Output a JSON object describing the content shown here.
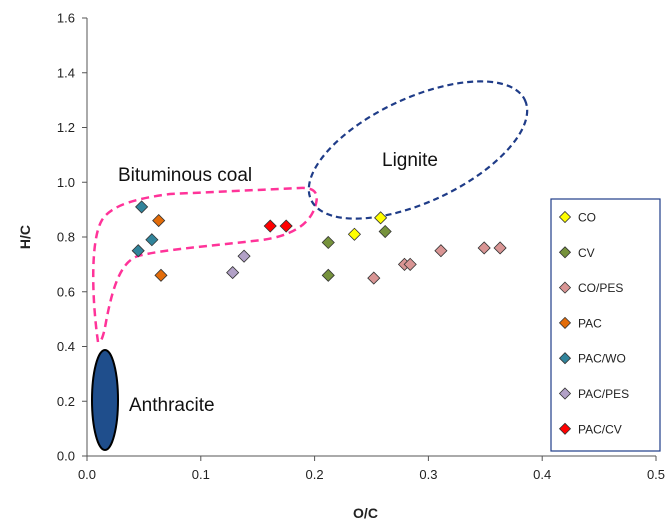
{
  "chart_data": {
    "type": "scatter",
    "xlabel": "O/C",
    "ylabel": "H/C",
    "xlim": [
      0,
      0.5
    ],
    "ylim": [
      0,
      1.6
    ],
    "x_ticks": [
      0.0,
      0.1,
      0.2,
      0.3,
      0.4,
      0.5
    ],
    "y_ticks": [
      0.0,
      0.2,
      0.4,
      0.6,
      0.8,
      1.0,
      1.2,
      1.4,
      1.6
    ],
    "x_tick_labels": [
      "0.0",
      "0.1",
      "0.2",
      "0.3",
      "0.4",
      "0.5"
    ],
    "y_tick_labels": [
      "0.0",
      "0.2",
      "0.4",
      "0.6",
      "0.8",
      "1.0",
      "1.2",
      "1.4",
      "1.6"
    ],
    "grid": false,
    "legend_position": "right",
    "series": [
      {
        "name": "CO",
        "color": "#ffff00",
        "marker": "diamond",
        "points": [
          [
            0.235,
            0.81
          ],
          [
            0.258,
            0.87
          ]
        ]
      },
      {
        "name": "CV",
        "color": "#76923c",
        "marker": "diamond",
        "points": [
          [
            0.212,
            0.78
          ],
          [
            0.262,
            0.82
          ],
          [
            0.212,
            0.66
          ]
        ]
      },
      {
        "name": "CO/PES",
        "color": "#d99594",
        "marker": "diamond",
        "points": [
          [
            0.252,
            0.65
          ],
          [
            0.279,
            0.7
          ],
          [
            0.284,
            0.7
          ],
          [
            0.311,
            0.75
          ],
          [
            0.349,
            0.76
          ],
          [
            0.363,
            0.76
          ]
        ]
      },
      {
        "name": "PAC",
        "color": "#e36c09",
        "marker": "diamond",
        "points": [
          [
            0.063,
            0.86
          ],
          [
            0.065,
            0.66
          ]
        ]
      },
      {
        "name": "PAC/WO",
        "color": "#31849b",
        "marker": "diamond",
        "points": [
          [
            0.048,
            0.91
          ],
          [
            0.057,
            0.79
          ],
          [
            0.045,
            0.75
          ]
        ]
      },
      {
        "name": "PAC/PES",
        "color": "#b2a1c7",
        "marker": "diamond",
        "points": [
          [
            0.128,
            0.67
          ],
          [
            0.138,
            0.73
          ]
        ]
      },
      {
        "name": "PAC/CV",
        "color": "#ff0000",
        "marker": "diamond",
        "points": [
          [
            0.161,
            0.84
          ],
          [
            0.175,
            0.84
          ]
        ]
      }
    ],
    "annotations": {
      "bituminous": {
        "label": "Bituminous coal",
        "color": "#ff3399"
      },
      "lignite": {
        "label": "Lignite",
        "color": "#1f3c88"
      },
      "anthracite": {
        "label": "Anthracite",
        "color": "#1f4e8c"
      }
    }
  }
}
